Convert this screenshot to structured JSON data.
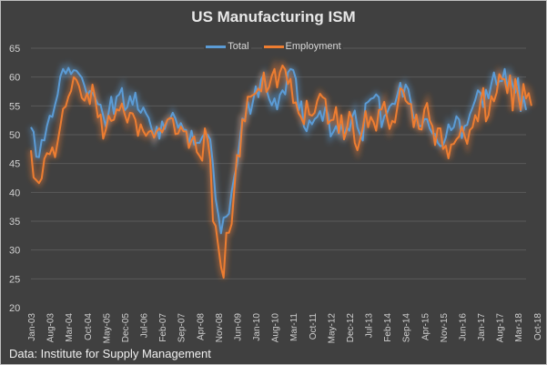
{
  "chart_data": {
    "type": "line",
    "title": "US Manufacturing ISM",
    "xlabel": "",
    "ylabel": "",
    "ylim": [
      20,
      65
    ],
    "yticks": [
      20,
      25,
      30,
      35,
      40,
      45,
      50,
      55,
      60,
      65
    ],
    "grid": true,
    "legend_position": "top-center",
    "x_start": "Jan-03",
    "x_tick_labels": [
      "Jan-03",
      "Aug-03",
      "Mar-04",
      "Oct-04",
      "May-05",
      "Dec-05",
      "Jul-06",
      "Feb-07",
      "Sep-07",
      "Apr-08",
      "Nov-08",
      "Jun-09",
      "Jan-10",
      "Aug-10",
      "Mar-11",
      "Oct-11",
      "May-12",
      "Dec-12",
      "Jul-13",
      "Feb-14",
      "Sep-14",
      "Apr-15",
      "Nov-15",
      "Jun-16",
      "Jan-17",
      "Aug-17",
      "Mar-18",
      "Oct-18"
    ],
    "x_tick_every_months": 7,
    "series": [
      {
        "name": "Total",
        "color": "#5b9bd5",
        "values": [
          51.3,
          50.5,
          46.2,
          46.1,
          49.1,
          49.0,
          51.5,
          53.3,
          53.1,
          55.2,
          57.0,
          60.1,
          61.4,
          60.6,
          61.6,
          60.5,
          61.2,
          61.1,
          60.5,
          59.9,
          58.5,
          56.8,
          57.6,
          57.3,
          56.4,
          55.3,
          55.2,
          53.3,
          51.4,
          53.8,
          56.6,
          53.6,
          56.6,
          57.0,
          58.1,
          54.2,
          54.8,
          56.7,
          55.2,
          57.3,
          54.4,
          53.8,
          54.7,
          53.7,
          52.9,
          51.2,
          49.5,
          51.4,
          49.3,
          52.3,
          51.0,
          52.6,
          52.8,
          53.8,
          52.8,
          51.2,
          52.0,
          50.9,
          50.8,
          48.4,
          50.7,
          48.3,
          48.6,
          48.6,
          49.6,
          50.2,
          50.0,
          49.2,
          44.8,
          38.9,
          36.2,
          32.9,
          35.6,
          35.8,
          36.3,
          40.1,
          42.8,
          44.8,
          48.9,
          52.8,
          52.6,
          55.7,
          53.6,
          55.9,
          58.4,
          56.5,
          59.6,
          60.4,
          57.8,
          56.2,
          55.1,
          56.3,
          54.4,
          56.9,
          57.7,
          57.0,
          60.8,
          61.4,
          61.2,
          59.7,
          54.2,
          55.8,
          51.4,
          50.6,
          52.5,
          51.8,
          52.7,
          53.1,
          54.1,
          52.4,
          54.8,
          53.5,
          49.7,
          50.5,
          51.5,
          50.2,
          51.7,
          49.9,
          51.3,
          50.7,
          53.1,
          54.2,
          51.3,
          50.0,
          49.0,
          55.4,
          55.7,
          56.2,
          56.4,
          57.0,
          56.5,
          51.3,
          53.2,
          53.7,
          54.9,
          55.4,
          55.3,
          57.1,
          59.0,
          56.6,
          58.7,
          57.9,
          55.5,
          52.9,
          52.9,
          51.5,
          51.5,
          52.7,
          52.7,
          51.1,
          50.2,
          50.1,
          48.6,
          48.0,
          48.2,
          49.5,
          51.8,
          50.8,
          51.3,
          53.2,
          52.6,
          49.4,
          51.5,
          51.7,
          53.5,
          54.7,
          56.0,
          57.7,
          57.2,
          54.8,
          57.8,
          56.3,
          58.8,
          60.8,
          58.7,
          59.3,
          59.3,
          61.4,
          58.2,
          60.2,
          58.6,
          57.3,
          59.8,
          54.1,
          56.6,
          54.3
        ],
        "values_note": "monthly, estimated from gridlines"
      },
      {
        "name": "Employment",
        "color": "#ed7d31",
        "values": [
          47.3,
          42.6,
          42.1,
          41.6,
          42.4,
          45.8,
          46.8,
          46.6,
          47.8,
          46.1,
          48.8,
          51.5,
          54.5,
          54.9,
          56.6,
          57.6,
          60.0,
          59.5,
          58.4,
          56.4,
          55.9,
          57.2,
          55.3,
          58.7,
          56.3,
          53.0,
          53.5,
          49.3,
          50.9,
          53.3,
          52.4,
          52.6,
          54.4,
          54.2,
          55.4,
          53.6,
          52.1,
          53.8,
          53.7,
          52.6,
          49.8,
          51.8,
          50.6,
          49.8,
          50.5,
          50.7,
          49.5,
          50.6,
          51.1,
          50.4,
          51.5,
          52.6,
          52.9,
          52.8,
          50.1,
          50.2,
          51.4,
          50.6,
          50.6,
          47.7,
          49.0,
          49.7,
          47.0,
          46.3,
          45.5,
          51.1,
          49.2,
          45.7,
          35.0,
          34.2,
          30.7,
          27.1,
          25.2,
          33.0,
          33.0,
          34.5,
          40.7,
          46.5,
          46.2,
          52.7,
          52.3,
          56.6,
          56.6,
          56.9,
          57.2,
          58.0,
          57.5,
          60.8,
          57.4,
          58.3,
          60.2,
          61.4,
          58.2,
          60.8,
          62.0,
          61.3,
          58.8,
          59.7,
          55.5,
          55.6,
          53.7,
          53.0,
          51.8,
          55.9,
          53.5,
          53.3,
          53.8,
          55.9,
          57.1,
          56.5,
          56.2,
          51.9,
          52.5,
          52.6,
          54.8,
          50.3,
          53.4,
          49.2,
          50.8,
          54.0,
          52.7,
          48.6,
          47.3,
          49.2,
          51.1,
          54.1,
          51.3,
          53.1,
          52.2,
          50.7,
          54.3,
          54.4,
          55.7,
          53.1,
          51.0,
          52.4,
          52.1,
          55.1,
          58.1,
          57.7,
          55.9,
          55.4,
          55.3,
          51.3,
          53.5,
          51.0,
          50.9,
          54.4,
          55.5,
          52.5,
          51.5,
          48.2,
          51.1,
          51.1,
          47.5,
          48.1,
          45.9,
          48.3,
          48.4,
          49.2,
          49.7,
          51.4,
          49.8,
          48.4,
          50.8,
          51.3,
          53.4,
          52.3,
          55.7,
          58.1,
          52.3,
          53.4,
          56.7,
          55.8,
          57.3,
          60.5,
          59.7,
          59.6,
          57.2,
          60.3,
          54.2,
          59.7,
          57.0,
          54.3,
          58.8,
          56.3,
          57.2,
          55.0
        ],
        "values_note": "monthly, estimated from gridlines"
      }
    ]
  },
  "source": "Data: Institute for Supply Management"
}
